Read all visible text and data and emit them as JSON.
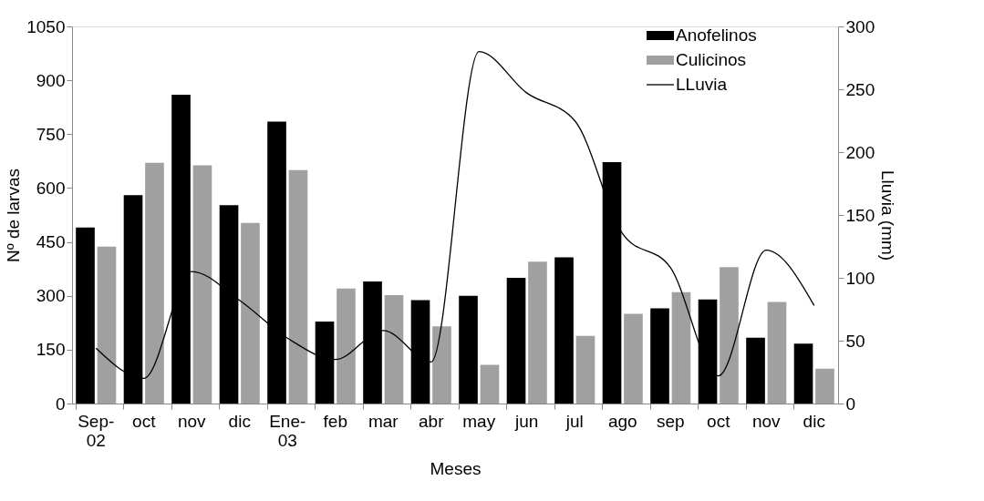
{
  "chart_data": {
    "type": "bar",
    "xlabel": "Meses",
    "ylabel": "Nº de larvas",
    "y2label": "Lluvia (mm)",
    "categories": [
      "Sep-02",
      "oct",
      "nov",
      "dic",
      "Ene-03",
      "feb",
      "mar",
      "abr",
      "may",
      "jun",
      "jul",
      "ago",
      "sep",
      "oct",
      "nov",
      "dic"
    ],
    "series": [
      {
        "name": "Anofelinos",
        "color": "#000000",
        "values": [
          490,
          580,
          860,
          552,
          785,
          228,
          340,
          288,
          300,
          350,
          407,
          672,
          265,
          290,
          183,
          167
        ]
      },
      {
        "name": "Culicinos",
        "color": "#a0a0a0",
        "values": [
          437,
          670,
          663,
          503,
          650,
          320,
          302,
          215,
          108,
          395,
          188,
          250,
          310,
          380,
          283,
          97
        ]
      },
      {
        "name": "LLuvia",
        "color": "#000000",
        "type": "line",
        "axis": "y2",
        "values": [
          44,
          20,
          105,
          82,
          52,
          35,
          58,
          33,
          280,
          247,
          225,
          135,
          108,
          22,
          122,
          78
        ]
      }
    ],
    "ylim": [
      0,
      1050
    ],
    "yticks": [
      0,
      150,
      300,
      450,
      600,
      750,
      900,
      1050
    ],
    "y2lim": [
      0,
      300
    ],
    "y2ticks": [
      0,
      50,
      100,
      150,
      200,
      250,
      300
    ],
    "grid": false,
    "legend": "top right",
    "marker": "none",
    "line_style": "solid"
  }
}
